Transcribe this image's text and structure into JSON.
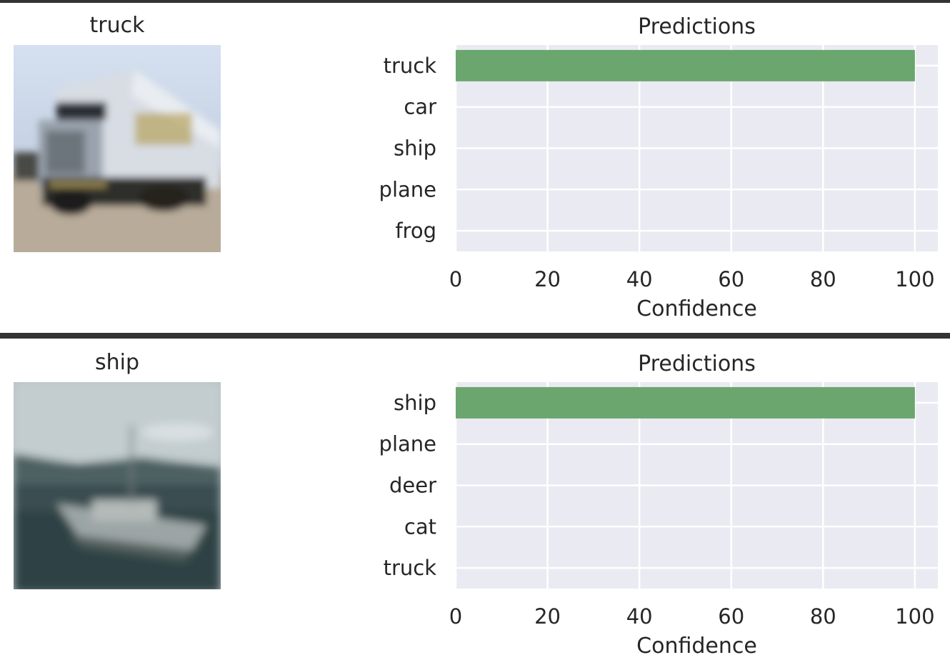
{
  "panels": [
    {
      "image_label": "truck",
      "image_colors": {
        "sky": "#c4d2e6",
        "ground": "#b8ab9a",
        "cargo": "#d6dbe2",
        "cab": "#9aa3ad",
        "shadow": "#2e2d2a"
      },
      "chart": {
        "title": "Predictions",
        "xlabel": "Confidence"
      }
    },
    {
      "image_label": "ship",
      "image_colors": {
        "sky": "#b5c0c3",
        "hills": "#4a5d60",
        "water": "#2c3e41",
        "hull": "#9ea6a6"
      },
      "chart": {
        "title": "Predictions",
        "xlabel": "Confidence"
      }
    }
  ],
  "chart_data": [
    {
      "type": "bar",
      "orientation": "horizontal",
      "title": "Predictions",
      "xlabel": "Confidence",
      "ylabel": "",
      "categories": [
        "truck",
        "car",
        "ship",
        "plane",
        "frog"
      ],
      "values": [
        100,
        0,
        0,
        0,
        0
      ],
      "xlim": [
        0,
        105
      ],
      "xticks": [
        0,
        20,
        40,
        60,
        80,
        100
      ],
      "grid": true,
      "bar_color": "#6aa66e",
      "background": "#eaeaf2"
    },
    {
      "type": "bar",
      "orientation": "horizontal",
      "title": "Predictions",
      "xlabel": "Confidence",
      "ylabel": "",
      "categories": [
        "ship",
        "plane",
        "deer",
        "cat",
        "truck"
      ],
      "values": [
        100,
        0,
        0,
        0,
        0
      ],
      "xlim": [
        0,
        105
      ],
      "xticks": [
        0,
        20,
        40,
        60,
        80,
        100
      ],
      "grid": true,
      "bar_color": "#6aa66e",
      "background": "#eaeaf2"
    }
  ]
}
